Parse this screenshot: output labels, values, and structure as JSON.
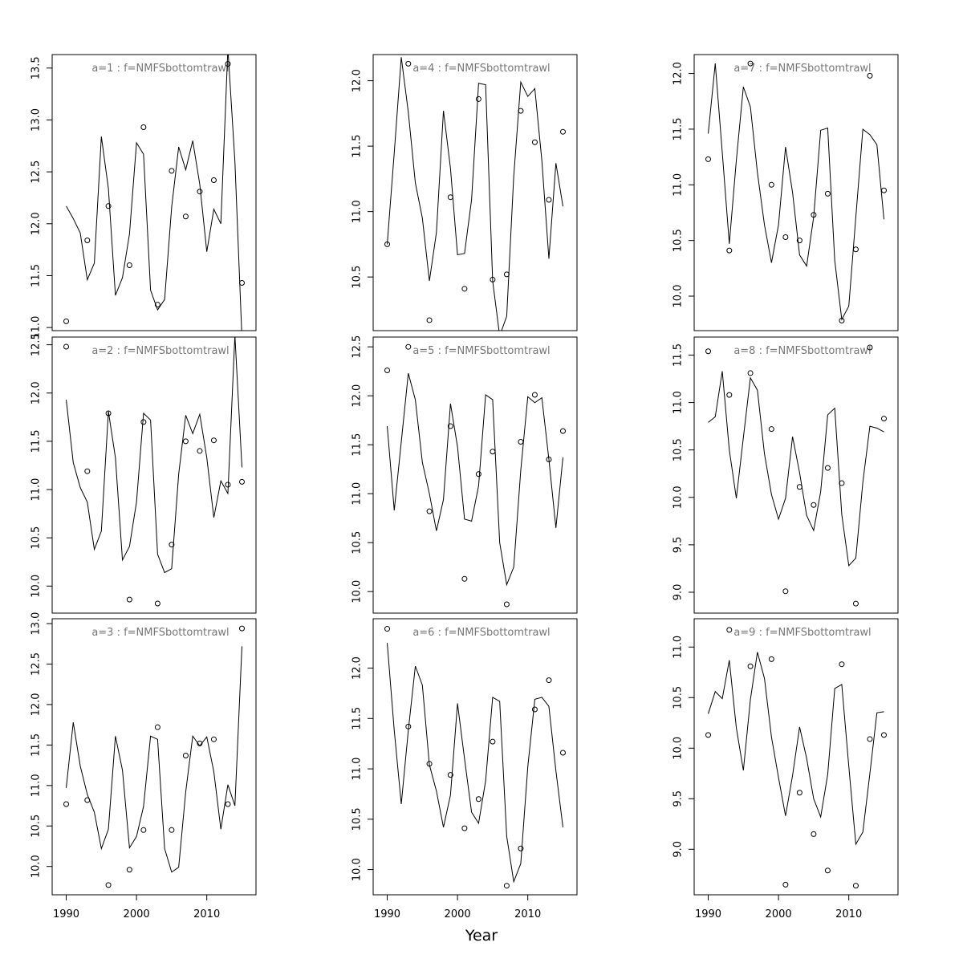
{
  "xlabel": "Year",
  "chart_data": [
    {
      "type": "line",
      "title": "a=1 : f=NMFSbottomtrawl",
      "color": "#000000",
      "x": [
        1990,
        1991,
        1992,
        1993,
        1994,
        1995,
        1996,
        1997,
        1998,
        1999,
        2000,
        2001,
        2002,
        2003,
        2004,
        2005,
        2006,
        2007,
        2008,
        2009,
        2010,
        2011,
        2012,
        2013,
        2014,
        2015
      ],
      "values": [
        12.17,
        12.05,
        11.91,
        11.46,
        11.62,
        12.84,
        12.34,
        11.31,
        11.48,
        11.9,
        12.78,
        12.67,
        11.36,
        11.17,
        11.27,
        12.16,
        12.74,
        12.52,
        12.8,
        12.38,
        11.73,
        12.14,
        12.0,
        13.69,
        12.6,
        10.9
      ],
      "points_x": [
        1990,
        1993,
        1996,
        1999,
        2001,
        2003,
        2005,
        2007,
        2009,
        2011,
        2013,
        2015
      ],
      "points": [
        11.06,
        11.84,
        12.17,
        11.6,
        12.93,
        11.22,
        12.51,
        12.07,
        12.31,
        12.42,
        13.54,
        11.43
      ],
      "xlim": [
        1988,
        2017
      ],
      "ylim": [
        10.97,
        13.63
      ],
      "yticks": [
        {
          "value": 11,
          "label": "11.0"
        },
        11.5,
        {
          "value": 12,
          "label": "12.0"
        },
        12.5,
        {
          "value": 13,
          "label": "13.0"
        },
        13.5
      ]
    },
    {
      "type": "line",
      "title": "a=2 : f=NMFSbottomtrawl",
      "color": "#000000",
      "x": [
        1990,
        1991,
        1992,
        1993,
        1994,
        1995,
        1996,
        1997,
        1998,
        1999,
        2000,
        2001,
        2002,
        2003,
        2004,
        2005,
        2006,
        2007,
        2008,
        2009,
        2010,
        2011,
        2012,
        2013,
        2014,
        2015
      ],
      "values": [
        11.93,
        11.28,
        11.02,
        10.87,
        10.38,
        10.57,
        11.81,
        11.33,
        10.27,
        10.41,
        10.87,
        11.79,
        11.72,
        10.33,
        10.14,
        10.18,
        11.16,
        11.77,
        11.58,
        11.78,
        11.33,
        10.71,
        11.09,
        10.96,
        12.6,
        11.23
      ],
      "points_x": [
        1990,
        1993,
        1996,
        1999,
        2001,
        2003,
        2005,
        2007,
        2009,
        2011,
        2013,
        2015
      ],
      "points": [
        12.48,
        11.19,
        11.79,
        9.86,
        11.7,
        9.82,
        10.43,
        11.5,
        11.4,
        11.51,
        11.05,
        11.08
      ],
      "xlim": [
        1988,
        2017
      ],
      "ylim": [
        9.72,
        12.58
      ],
      "yticks": [
        {
          "value": 10,
          "label": "10.0"
        },
        10.5,
        {
          "value": 11,
          "label": "11.0"
        },
        11.5,
        {
          "value": 12,
          "label": "12.0"
        },
        12.5
      ]
    },
    {
      "type": "line",
      "title": "a=3 : f=NMFSbottomtrawl",
      "color": "#000000",
      "x": [
        1990,
        1991,
        1992,
        1993,
        1994,
        1995,
        1996,
        1997,
        1998,
        1999,
        2000,
        2001,
        2002,
        2003,
        2004,
        2005,
        2006,
        2007,
        2008,
        2009,
        2010,
        2011,
        2012,
        2013,
        2014,
        2015
      ],
      "values": [
        10.97,
        11.78,
        11.24,
        10.89,
        10.67,
        10.22,
        10.46,
        11.61,
        11.19,
        10.23,
        10.37,
        10.74,
        11.61,
        11.57,
        10.22,
        9.93,
        9.99,
        10.92,
        11.61,
        11.49,
        11.6,
        11.17,
        10.46,
        11.01,
        10.75,
        12.72
      ],
      "points_x": [
        1990,
        1993,
        1996,
        1999,
        2001,
        2003,
        2005,
        2007,
        2009,
        2011,
        2013,
        2015
      ],
      "points": [
        10.77,
        10.82,
        9.77,
        9.96,
        10.45,
        11.72,
        10.45,
        11.37,
        11.52,
        11.57,
        10.77,
        12.94
      ],
      "xlim": [
        1988,
        2017
      ],
      "ylim": [
        9.65,
        13.06
      ],
      "xticks": [
        1990,
        2000,
        2010
      ],
      "yticks": [
        {
          "value": 10,
          "label": "10.0"
        },
        10.5,
        {
          "value": 11,
          "label": "11.0"
        },
        11.5,
        {
          "value": 12,
          "label": "12.0"
        },
        12.5,
        {
          "value": 13,
          "label": "13.0"
        }
      ]
    },
    {
      "type": "line",
      "title": "a=4 : f=NMFSbottomtrawl",
      "color": "#000000",
      "x": [
        1990,
        1991,
        1992,
        1993,
        1994,
        1995,
        1996,
        1997,
        1998,
        1999,
        2000,
        2001,
        2002,
        2003,
        2004,
        2005,
        2006,
        2007,
        2008,
        2009,
        2010,
        2011,
        2012,
        2013,
        2014,
        2015
      ],
      "values": [
        10.75,
        11.45,
        12.18,
        11.76,
        11.22,
        10.95,
        10.47,
        10.84,
        11.77,
        11.33,
        10.67,
        10.68,
        11.09,
        11.98,
        11.97,
        10.47,
        10.05,
        10.2,
        11.27,
        11.99,
        11.88,
        11.94,
        11.39,
        10.64,
        11.37,
        11.04
      ],
      "points_x": [
        1990,
        1993,
        1996,
        1999,
        2001,
        2003,
        2005,
        2007,
        2009,
        2011,
        2013,
        2015
      ],
      "points": [
        10.75,
        12.13,
        10.17,
        11.11,
        10.41,
        11.86,
        10.48,
        10.52,
        11.77,
        11.53,
        11.09,
        11.61
      ],
      "xlim": [
        1988,
        2017
      ],
      "ylim": [
        10.09,
        12.2
      ],
      "yticks": [
        10.5,
        {
          "value": 11,
          "label": "11.0"
        },
        11.5,
        {
          "value": 12,
          "label": "12.0"
        }
      ]
    },
    {
      "type": "line",
      "title": "a=5 : f=NMFSbottomtrawl",
      "color": "#000000",
      "x": [
        1990,
        1991,
        1992,
        1993,
        1994,
        1995,
        1996,
        1997,
        1998,
        1999,
        2000,
        2001,
        2002,
        2003,
        2004,
        2005,
        2006,
        2007,
        2008,
        2009,
        2010,
        2011,
        2012,
        2013,
        2014,
        2015
      ],
      "values": [
        11.69,
        10.83,
        11.53,
        12.23,
        11.96,
        11.32,
        11.0,
        10.62,
        10.94,
        11.92,
        11.48,
        10.74,
        10.72,
        11.08,
        12.01,
        11.96,
        10.5,
        10.07,
        10.25,
        11.24,
        11.99,
        11.93,
        11.98,
        11.35,
        10.65,
        11.37
      ],
      "points_x": [
        1990,
        1993,
        1996,
        1999,
        2001,
        2003,
        2005,
        2007,
        2009,
        2011,
        2013,
        2015
      ],
      "points": [
        12.26,
        12.5,
        10.82,
        11.69,
        10.13,
        11.2,
        11.43,
        9.87,
        11.53,
        12.01,
        11.35,
        11.64
      ],
      "xlim": [
        1988,
        2017
      ],
      "ylim": [
        9.78,
        12.6
      ],
      "yticks": [
        {
          "value": 10,
          "label": "10.0"
        },
        10.5,
        {
          "value": 11,
          "label": "11.0"
        },
        11.5,
        {
          "value": 12,
          "label": "12.0"
        },
        12.5
      ]
    },
    {
      "type": "line",
      "title": "a=6 : f=NMFSbottomtrawl",
      "color": "#000000",
      "x": [
        1990,
        1991,
        1992,
        1993,
        1994,
        1995,
        1996,
        1997,
        1998,
        1999,
        2000,
        2001,
        2002,
        2003,
        2004,
        2005,
        2006,
        2007,
        2008,
        2009,
        2010,
        2011,
        2012,
        2013,
        2014,
        2015
      ],
      "values": [
        12.25,
        11.38,
        10.65,
        11.38,
        12.02,
        11.83,
        11.04,
        10.78,
        10.42,
        10.74,
        11.65,
        11.1,
        10.57,
        10.46,
        10.88,
        11.71,
        11.67,
        10.33,
        9.88,
        10.06,
        11.02,
        11.69,
        11.71,
        11.62,
        10.98,
        10.42
      ],
      "points_x": [
        1990,
        1993,
        1996,
        1999,
        2001,
        2003,
        2005,
        2007,
        2009,
        2011,
        2013,
        2015
      ],
      "points": [
        12.39,
        11.42,
        11.05,
        10.94,
        10.41,
        10.7,
        11.27,
        9.84,
        10.21,
        11.59,
        11.88,
        11.16
      ],
      "xlim": [
        1988,
        2017
      ],
      "ylim": [
        9.75,
        12.49
      ],
      "xticks": [
        1990,
        2000,
        2010
      ],
      "yticks": [
        {
          "value": 10,
          "label": "10.0"
        },
        10.5,
        {
          "value": 11,
          "label": "11.0"
        },
        11.5,
        {
          "value": 12,
          "label": "12.0"
        }
      ]
    },
    {
      "type": "line",
      "title": "a=7 : f=NMFSbottomtrawl",
      "color": "#000000",
      "x": [
        1990,
        1991,
        1992,
        1993,
        1994,
        1995,
        1996,
        1997,
        1998,
        1999,
        2000,
        2001,
        2002,
        2003,
        2004,
        2005,
        2006,
        2007,
        2008,
        2009,
        2010,
        2011,
        2012,
        2013,
        2014,
        2015
      ],
      "values": [
        11.46,
        12.09,
        11.29,
        10.47,
        11.22,
        11.88,
        11.7,
        11.11,
        10.64,
        10.3,
        10.64,
        11.34,
        10.93,
        10.37,
        10.27,
        10.71,
        11.49,
        11.51,
        10.32,
        9.79,
        9.91,
        10.71,
        11.5,
        11.45,
        11.36,
        10.69
      ],
      "points_x": [
        1990,
        1993,
        1996,
        1999,
        2001,
        2003,
        2005,
        2007,
        2009,
        2011,
        2013,
        2015
      ],
      "points": [
        11.23,
        10.41,
        12.09,
        11.0,
        10.53,
        10.5,
        10.73,
        10.92,
        9.78,
        10.42,
        11.98,
        10.95
      ],
      "xlim": [
        1988,
        2017
      ],
      "ylim": [
        9.69,
        12.17
      ],
      "yticks": [
        {
          "value": 10,
          "label": "10.0"
        },
        10.5,
        {
          "value": 11,
          "label": "11.0"
        },
        11.5,
        {
          "value": 12,
          "label": "12.0"
        }
      ]
    },
    {
      "type": "line",
      "title": "a=8 : f=NMFSbottomtrawl",
      "color": "#000000",
      "x": [
        1990,
        1991,
        1992,
        1993,
        1994,
        1995,
        1996,
        1997,
        1998,
        1999,
        2000,
        2001,
        2002,
        2003,
        2004,
        2005,
        2006,
        2007,
        2008,
        2009,
        2010,
        2011,
        2012,
        2013,
        2014,
        2015
      ],
      "values": [
        10.79,
        10.85,
        11.33,
        10.5,
        9.99,
        10.63,
        11.26,
        11.13,
        10.46,
        10.03,
        9.77,
        9.99,
        10.64,
        10.26,
        9.81,
        9.65,
        10.06,
        10.87,
        10.94,
        9.82,
        9.28,
        9.36,
        10.16,
        10.75,
        10.73,
        10.69
      ],
      "points_x": [
        1990,
        1993,
        1996,
        1999,
        2001,
        2003,
        2005,
        2007,
        2009,
        2011,
        2013,
        2015
      ],
      "points": [
        11.54,
        11.08,
        11.31,
        10.72,
        9.01,
        10.11,
        9.92,
        10.31,
        10.15,
        8.88,
        11.58,
        10.83
      ],
      "xlim": [
        1988,
        2017
      ],
      "ylim": [
        8.78,
        11.69
      ],
      "yticks": [
        {
          "value": 9,
          "label": "9.0"
        },
        9.5,
        {
          "value": 10,
          "label": "10.0"
        },
        10.5,
        {
          "value": 11,
          "label": "11.0"
        },
        11.5
      ]
    },
    {
      "type": "line",
      "title": "a=9 : f=NMFSbottomtrawl",
      "color": "#000000",
      "x": [
        1990,
        1991,
        1992,
        1993,
        1994,
        1995,
        1996,
        1997,
        1998,
        1999,
        2000,
        2001,
        2002,
        2003,
        2004,
        2005,
        2006,
        2007,
        2008,
        2009,
        2010,
        2011,
        2012,
        2013,
        2014,
        2015
      ],
      "values": [
        10.34,
        10.56,
        10.49,
        10.87,
        10.2,
        9.78,
        10.48,
        10.95,
        10.69,
        10.11,
        9.71,
        9.33,
        9.73,
        10.21,
        9.9,
        9.5,
        9.32,
        9.74,
        10.59,
        10.63,
        9.82,
        9.05,
        9.17,
        9.75,
        10.35,
        10.36
      ],
      "points_x": [
        1990,
        1993,
        1996,
        1999,
        2001,
        2003,
        2005,
        2007,
        2009,
        2011,
        2013,
        2015
      ],
      "points": [
        10.13,
        11.17,
        10.81,
        10.88,
        8.65,
        9.56,
        9.15,
        8.79,
        10.83,
        8.64,
        10.09,
        10.13
      ],
      "xlim": [
        1988,
        2017
      ],
      "ylim": [
        8.55,
        11.28
      ],
      "xticks": [
        1990,
        2000,
        2010
      ],
      "yticks": [
        {
          "value": 9,
          "label": "9.0"
        },
        9.5,
        {
          "value": 10,
          "label": "10.0"
        },
        10.5,
        {
          "value": 11,
          "label": "11.0"
        }
      ]
    }
  ]
}
